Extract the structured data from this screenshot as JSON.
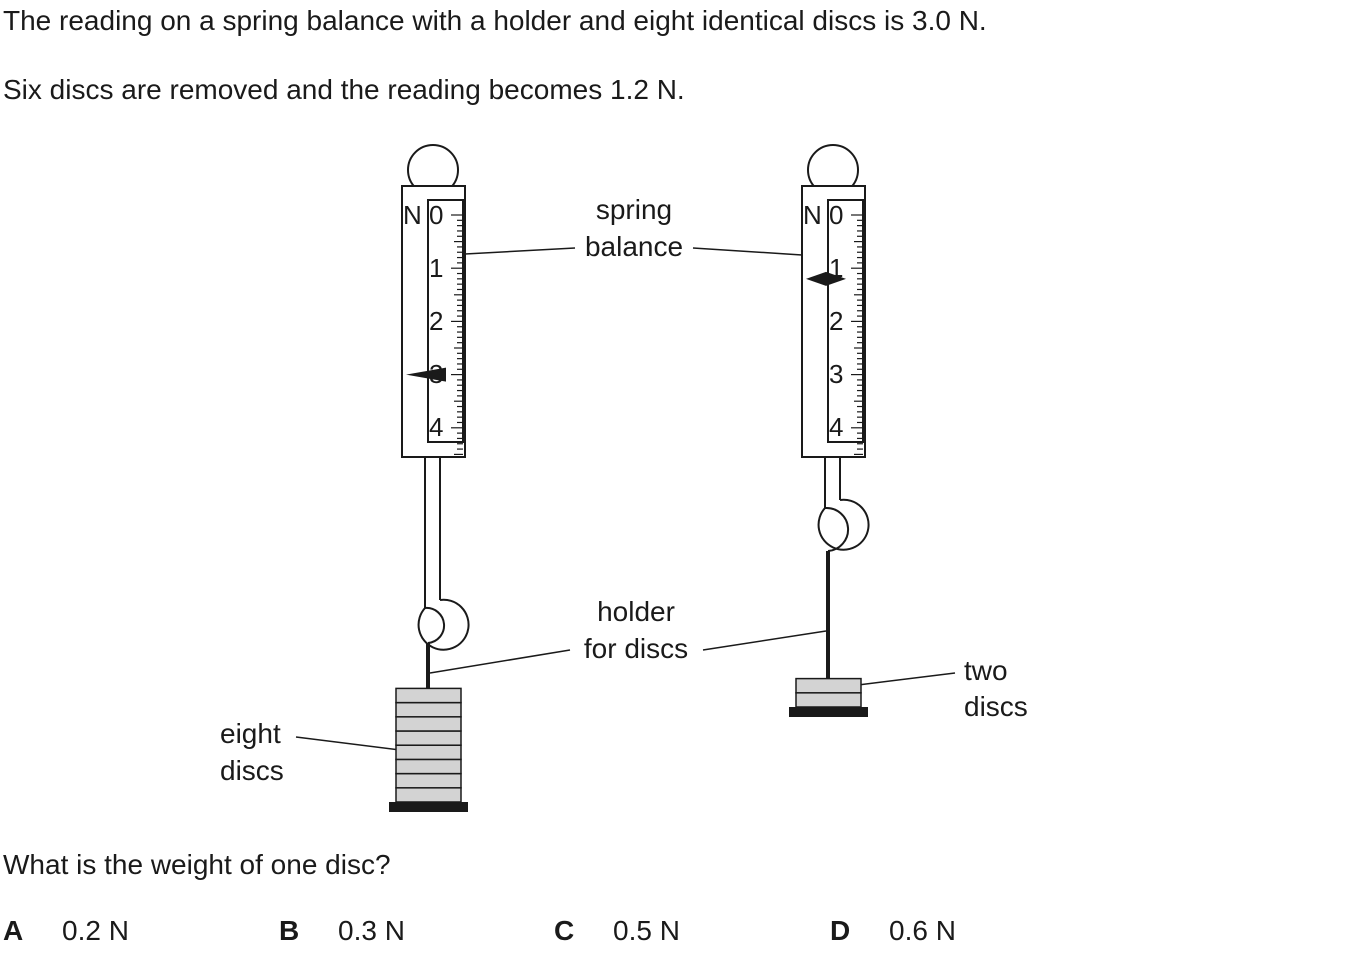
{
  "question": {
    "line1": "The reading on a spring balance with a holder and eight identical discs is 3.0 N.",
    "line2": "Six discs are removed and the reading becomes 1.2 N.",
    "prompt": "What is the weight of one disc?"
  },
  "diagram": {
    "scale_unit": "N",
    "scale_ticks": [
      "0",
      "1",
      "2",
      "3",
      "4"
    ],
    "labels": {
      "spring_balance_1": "spring",
      "spring_balance_2": "balance",
      "holder_1": "holder",
      "holder_2": "for discs",
      "eight_discs_1": "eight",
      "eight_discs_2": "discs",
      "two_discs_1": "two",
      "two_discs_2": "discs"
    },
    "left_balance": {
      "reading_N": 3.0,
      "discs": 8
    },
    "right_balance": {
      "reading_N": 1.2,
      "discs": 2
    },
    "colors": {
      "disc_fill": "#d3d3d3",
      "ink": "#1a1a1a"
    }
  },
  "options": [
    {
      "letter": "A",
      "value": "0.2 N"
    },
    {
      "letter": "B",
      "value": "0.3 N"
    },
    {
      "letter": "C",
      "value": "0.5 N"
    },
    {
      "letter": "D",
      "value": "0.6 N"
    }
  ]
}
